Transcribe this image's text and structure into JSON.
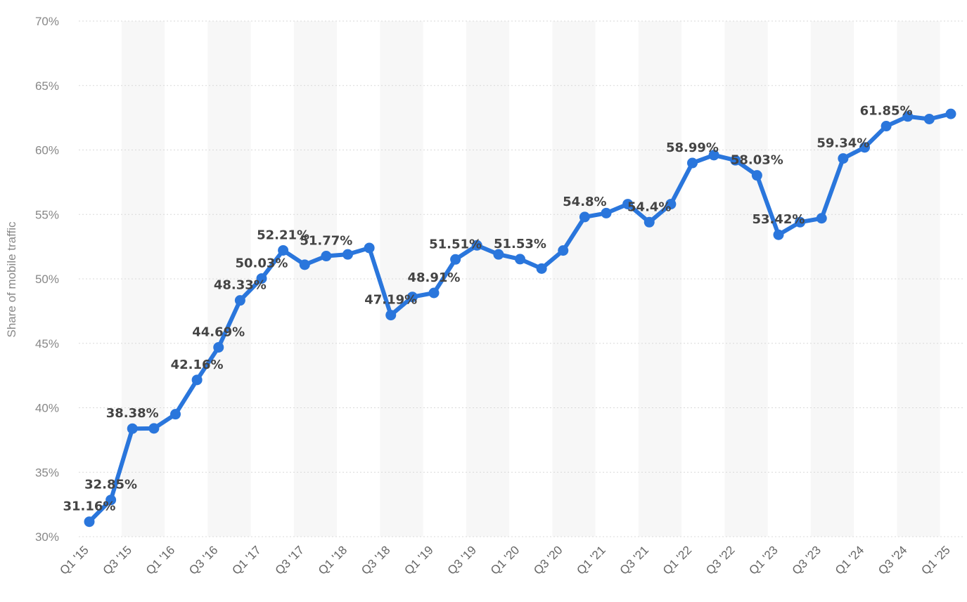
{
  "chart_data": {
    "type": "line",
    "ylabel": "Share of mobile traffic",
    "xlabel": "",
    "ylim": [
      30,
      70
    ],
    "yticks": [
      "30%",
      "35%",
      "40%",
      "45%",
      "50%",
      "55%",
      "60%",
      "65%",
      "70%"
    ],
    "grid": true,
    "legend": "none",
    "line_color": "#2a76dc",
    "x": [
      "Q1 '15",
      "Q2 '15",
      "Q3 '15",
      "Q4 '15",
      "Q1 '16",
      "Q2 '16",
      "Q3 '16",
      "Q4 '16",
      "Q1 '17",
      "Q2 '17",
      "Q3 '17",
      "Q4 '17",
      "Q1 '18",
      "Q2 '18",
      "Q3 '18",
      "Q4 '18",
      "Q1 '19",
      "Q2 '19",
      "Q3 '19",
      "Q4 '19",
      "Q1 '20",
      "Q2 '20",
      "Q3 '20",
      "Q4 '20",
      "Q1 '21",
      "Q2 '21",
      "Q3 '21",
      "Q4 '21",
      "Q1 '22",
      "Q2 '22",
      "Q3 '22",
      "Q4 '22",
      "Q1 '23",
      "Q2 '23",
      "Q3 '23",
      "Q4 '23",
      "Q1 '24",
      "Q2 '24",
      "Q3 '24",
      "Q4 '24",
      "Q1 '25"
    ],
    "x_tick_labels": [
      "Q1 '15",
      "Q3 '15",
      "Q1 '16",
      "Q3 '16",
      "Q1 '17",
      "Q3 '17",
      "Q1 '18",
      "Q3 '18",
      "Q1 '19",
      "Q3 '19",
      "Q1 '20",
      "Q3 '20",
      "Q1 '21",
      "Q3 '21",
      "Q1 '22",
      "Q3 '22",
      "Q1 '23",
      "Q3 '23",
      "Q1 '24",
      "Q3 '24",
      "Q1 '25"
    ],
    "series": [
      {
        "values": [
          31.16,
          32.85,
          38.38,
          38.4,
          39.5,
          42.16,
          44.69,
          48.33,
          50.03,
          52.21,
          51.1,
          51.77,
          51.9,
          52.4,
          47.19,
          48.6,
          48.91,
          51.51,
          52.6,
          51.9,
          51.53,
          50.8,
          52.2,
          54.8,
          55.1,
          55.8,
          54.4,
          55.8,
          58.99,
          59.6,
          59.2,
          58.03,
          53.42,
          54.4,
          54.7,
          59.34,
          60.2,
          61.85,
          62.6,
          62.4,
          62.8
        ],
        "labels": [
          "31.16%",
          "32.85%",
          "38.38%",
          "",
          "",
          "42.16%",
          "44.69%",
          "48.33%",
          "50.03%",
          "52.21%",
          "",
          "51.77%",
          "",
          "",
          "47.19%",
          "",
          "48.91%",
          "51.51%",
          "",
          "",
          "51.53%",
          "",
          "",
          "54.8%",
          "",
          "",
          "54.4%",
          "",
          "58.99%",
          "",
          "",
          "58.03%",
          "53.42%",
          "",
          "",
          "59.34%",
          "",
          "61.85%",
          "",
          "",
          ""
        ]
      }
    ]
  }
}
